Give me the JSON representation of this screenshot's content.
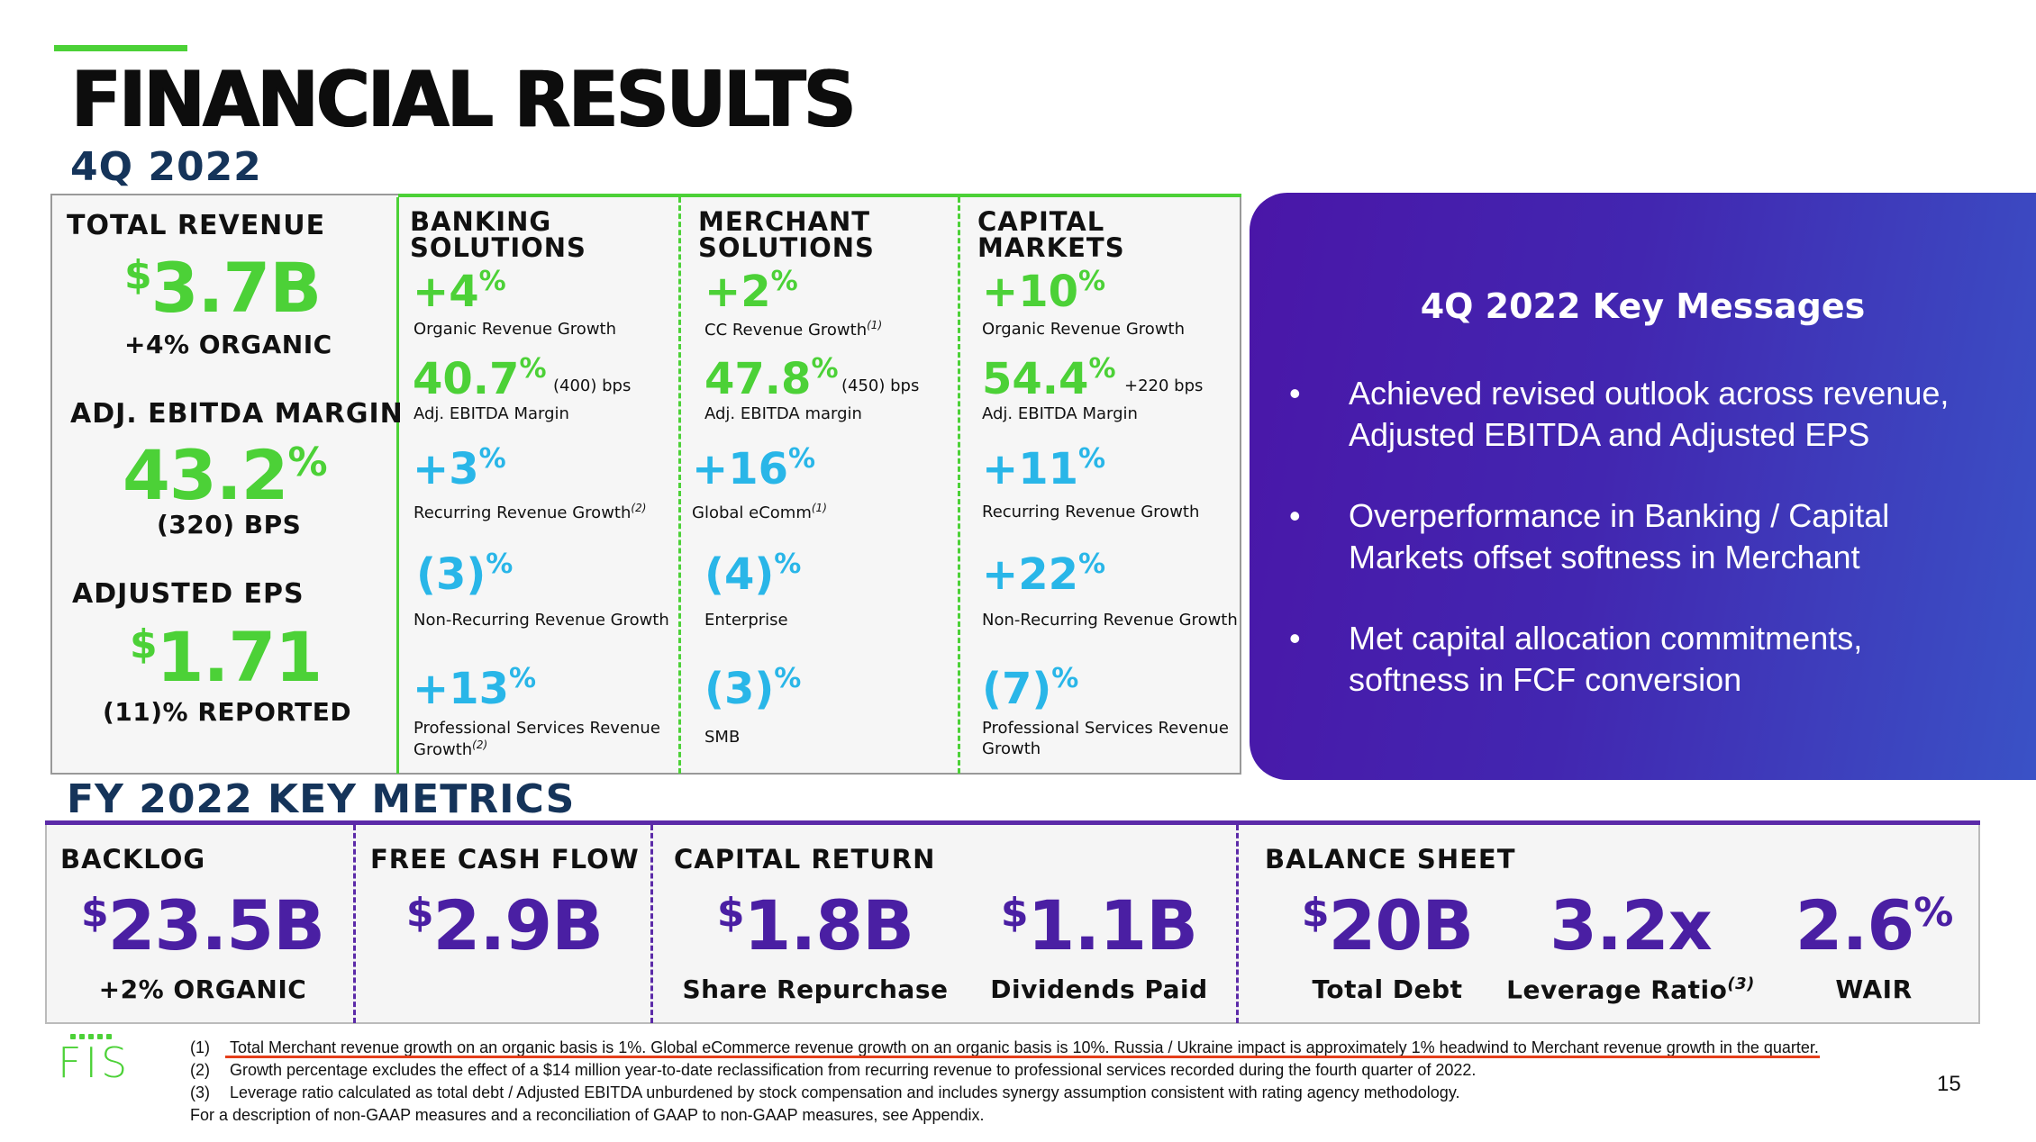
{
  "title": "FINANCIAL RESULTS",
  "period": "4Q 2022",
  "summary": {
    "total_revenue_label": "TOTAL REVENUE",
    "total_revenue_value": "3.7B",
    "total_revenue_sub": "+4% ORGANIC",
    "ebitda_label": "ADJ. EBITDA MARGIN",
    "ebitda_value": "43.2",
    "ebitda_sub": "(320) BPS",
    "eps_label": "ADJUSTED EPS",
    "eps_value": "1.71",
    "eps_sub": "(11)% REPORTED",
    "currency": "$",
    "percent": "%"
  },
  "segments": {
    "banking": {
      "title_line1": "BANKING",
      "title_line2": "SOLUTIONS",
      "k1_value": "+4",
      "k1_label": "Organic Revenue Growth",
      "k2_value": "40.7",
      "k2_bps": "(400) bps",
      "k2_label": "Adj. EBITDA Margin",
      "k3_value": "+3",
      "k3_label": "Recurring Revenue Growth",
      "k3_note": "(2)",
      "k4_value": "(3)",
      "k4_label": "Non-Recurring Revenue Growth",
      "k5_value": "+13",
      "k5_label_line1": "Professional Services Revenue",
      "k5_label_line2": "Growth",
      "k5_note": "(2)"
    },
    "merchant": {
      "title_line1": "MERCHANT",
      "title_line2": "SOLUTIONS",
      "k1_value": "+2",
      "k1_label": "CC Revenue Growth",
      "k1_note": "(1)",
      "k2_value": "47.8",
      "k2_bps": "(450) bps",
      "k2_label": "Adj. EBITDA margin",
      "k3_value": "+16",
      "k3_label": "Global eComm",
      "k3_note": "(1)",
      "k4_value": "(4)",
      "k4_label": "Enterprise",
      "k5_value": "(3)",
      "k5_label": "SMB"
    },
    "capital": {
      "title_line1": "CAPITAL",
      "title_line2": "MARKETS",
      "k1_value": "+10",
      "k1_label": "Organic Revenue Growth",
      "k2_value": "54.4",
      "k2_bps": "+220 bps",
      "k2_label": "Adj. EBITDA Margin",
      "k3_value": "+11",
      "k3_label": "Recurring Revenue Growth",
      "k4_value": "+22",
      "k4_label": "Non-Recurring Revenue Growth",
      "k5_value": "(7)",
      "k5_label_line1": "Professional Services Revenue",
      "k5_label_line2": "Growth"
    }
  },
  "key_messages": {
    "title": "4Q 2022 Key Messages",
    "bullet_char": "•",
    "items": [
      {
        "line1": "Achieved revised outlook across revenue,",
        "line2": "Adjusted EBITDA and Adjusted EPS"
      },
      {
        "line1": "Overperformance in Banking / Capital",
        "line2": "Markets offset softness in Merchant"
      },
      {
        "line1": "Met capital allocation commitments,",
        "line2": "softness in FCF conversion"
      }
    ]
  },
  "fy": {
    "title": "FY 2022 KEY METRICS",
    "backlog_label": "BACKLOG",
    "backlog_value": "23.5B",
    "backlog_sub": "+2% ORGANIC",
    "fcf_label": "FREE CASH FLOW",
    "fcf_value": "2.9B",
    "capital_return_label": "CAPITAL RETURN",
    "repurchase_value": "1.8B",
    "repurchase_sub": "Share Repurchase",
    "dividends_value": "1.1B",
    "dividends_sub": "Dividends Paid",
    "balance_label": "BALANCE SHEET",
    "debt_value": "20B",
    "debt_sub": "Total Debt",
    "leverage_value": "3.2x",
    "leverage_sub": "Leverage Ratio",
    "leverage_note": "(3)",
    "wair_value": "2.6",
    "wair_sub": "WAIR"
  },
  "footnotes": {
    "n1_num": "(1)",
    "n1": "Total Merchant revenue growth on an organic basis is 1%. Global eCommerce revenue growth on an organic basis is 10%. Russia / Ukraine impact is approximately 1% headwind to Merchant revenue growth in the quarter.",
    "n2_num": "(2)",
    "n2": "Growth percentage excludes the effect of a $14 million year-to-date reclassification from recurring revenue to professional services recorded during the fourth quarter of 2022.",
    "n3_num": "(3)",
    "n3": "Leverage ratio calculated as total debt / Adjusted EBITDA unburdened by stock compensation and includes synergy assumption consistent with rating agency methodology.",
    "n4": "For a description of non-GAAP measures and a reconciliation of GAAP to non-GAAP measures, see Appendix."
  },
  "logo_text": "FIS",
  "page_number": "15",
  "colors": {
    "green": "#4cd137",
    "blue": "#29b6e8",
    "purple": "#4a1fa3",
    "navy": "#15345a"
  }
}
